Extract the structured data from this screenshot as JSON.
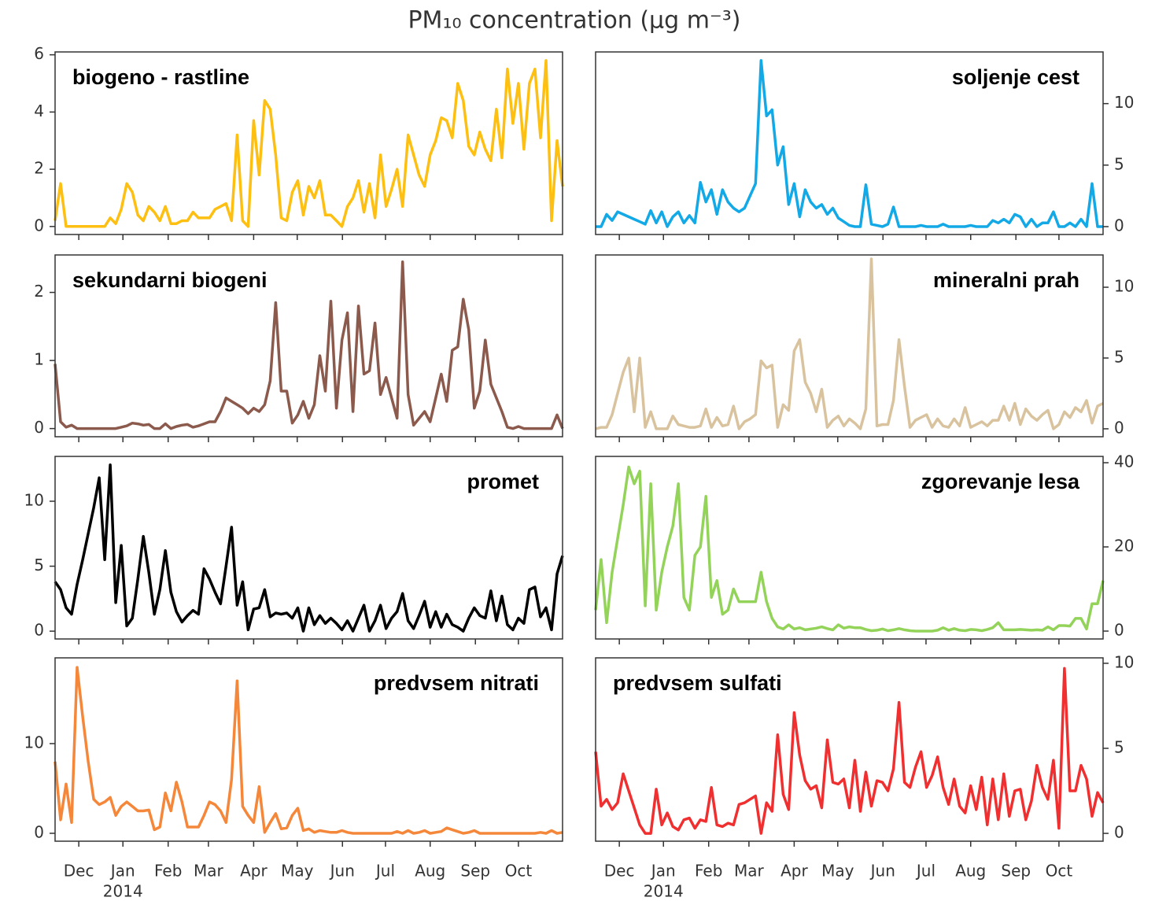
{
  "chart_data": {
    "type": "line",
    "title": "PM₁₀ concentration (μg m⁻³)",
    "xlim": [
      0,
      92
    ],
    "xticks": [
      {
        "value": 4.3,
        "label": "Dec"
      },
      {
        "value": 12.3,
        "label": "Jan"
      },
      {
        "value": 20.5,
        "label": "Feb"
      },
      {
        "value": 27.8,
        "label": "Mar"
      },
      {
        "value": 36.0,
        "label": "Apr"
      },
      {
        "value": 43.9,
        "label": "May"
      },
      {
        "value": 52.1,
        "label": "Jun"
      },
      {
        "value": 59.9,
        "label": "Jul"
      },
      {
        "value": 68.0,
        "label": "Aug"
      },
      {
        "value": 76.2,
        "label": "Sep"
      },
      {
        "value": 84.0,
        "label": "Oct"
      }
    ],
    "year_label": "2014",
    "panels": [
      {
        "name": "biogeno - rastline",
        "color": "#fdbf11",
        "axis": "y",
        "legend": "upper left",
        "ylim": [
          -0.28,
          6.1
        ],
        "yticks": [
          0,
          2,
          4,
          6
        ],
        "values": [
          0.2,
          1.5,
          0,
          0,
          0,
          0,
          0,
          0,
          0,
          0,
          0.3,
          0.1,
          0.6,
          1.5,
          1.2,
          0.4,
          0.2,
          0.7,
          0.5,
          0.2,
          0.7,
          0.1,
          0.1,
          0.2,
          0.2,
          0.5,
          0.3,
          0.3,
          0.3,
          0.6,
          0.7,
          0.8,
          0.2,
          3.2,
          0.2,
          0,
          3.7,
          1.8,
          4.4,
          4.1,
          2.5,
          0.3,
          0.2,
          1.2,
          1.6,
          0.4,
          1.4,
          1.0,
          1.6,
          0.4,
          0.4,
          0.2,
          0,
          0.7,
          1.0,
          1.6,
          0.5,
          1.5,
          0.3,
          2.5,
          0.7,
          1.3,
          2.0,
          0.7,
          3.2,
          2.5,
          1.8,
          1.4,
          2.5,
          3.0,
          3.8,
          3.7,
          3.1,
          5.0,
          4.4,
          2.8,
          2.5,
          3.3,
          2.7,
          2.3,
          4.1,
          2.4,
          5.5,
          3.6,
          5.0,
          2.7,
          5.0,
          5.5,
          3.1,
          5.8,
          0.2,
          3.0,
          1.4
        ]
      },
      {
        "name": "sekundarni biogeni",
        "color": "#8b5a4c",
        "axis": "y",
        "legend": "upper left",
        "ylim": [
          -0.12,
          2.55
        ],
        "yticks": [
          0,
          1,
          2
        ],
        "values": [
          0.95,
          0.1,
          0.02,
          0.05,
          0,
          0,
          0,
          0,
          0,
          0,
          0,
          0,
          0.02,
          0.04,
          0.08,
          0.07,
          0.05,
          0.06,
          0,
          0,
          0.07,
          0,
          0.03,
          0.05,
          0.06,
          0.02,
          0.04,
          0.07,
          0.1,
          0.1,
          0.25,
          0.45,
          0.4,
          0.35,
          0.3,
          0.22,
          0.3,
          0.25,
          0.35,
          0.7,
          1.85,
          0.55,
          0.55,
          0.08,
          0.2,
          0.4,
          0.15,
          0.35,
          1.07,
          0.55,
          1.87,
          0.3,
          1.3,
          1.7,
          0.25,
          1.8,
          0.8,
          0.85,
          1.55,
          0.5,
          0.75,
          0.45,
          0.15,
          2.45,
          0.5,
          0.05,
          0.15,
          0.25,
          0.1,
          0.45,
          0.8,
          0.4,
          1.15,
          1.2,
          1.9,
          1.45,
          0.3,
          0.55,
          1.3,
          0.65,
          0.45,
          0.25,
          0.02,
          0,
          0.03,
          0,
          0,
          0,
          0,
          0,
          0,
          0.2,
          0
        ]
      },
      {
        "name": "promet",
        "color": "#000000",
        "axis": "y",
        "legend": "upper right",
        "ylim": [
          -0.6,
          13.45
        ],
        "yticks": [
          0,
          5,
          10
        ],
        "values": [
          3.8,
          3.2,
          1.8,
          1.3,
          3.6,
          5.5,
          7.5,
          9.5,
          11.8,
          5.5,
          12.8,
          2.2,
          6.6,
          0.4,
          1.0,
          4.0,
          7.3,
          4.5,
          1.3,
          3.2,
          6.2,
          3.0,
          1.5,
          0.7,
          1.2,
          1.6,
          1.3,
          4.8,
          4.0,
          3.0,
          2.1,
          5.0,
          8.0,
          2.0,
          3.8,
          0.1,
          1.7,
          1.8,
          3.2,
          1.1,
          1.4,
          1.3,
          1.4,
          1.0,
          1.8,
          0.0,
          1.8,
          0.5,
          1.2,
          0.6,
          1.0,
          0.6,
          0.1,
          0.8,
          0.0,
          1.0,
          2.0,
          0.0,
          0.8,
          2.0,
          0.2,
          1.0,
          1.5,
          2.9,
          0.8,
          0.2,
          1.2,
          2.3,
          0.3,
          1.5,
          0.3,
          1.3,
          0.5,
          0.3,
          0.0,
          1.0,
          1.8,
          1.2,
          1.0,
          3.1,
          0.8,
          2.7,
          0.5,
          0.1,
          1.0,
          0.6,
          3.2,
          3.4,
          1.1,
          1.8,
          0.1,
          4.4,
          5.8
        ]
      },
      {
        "name": "predvsem nitrati",
        "color": "#f5873a",
        "axis": "y",
        "legend": "upper right",
        "ylim": [
          -0.88,
          19.56
        ],
        "yticks": [
          0,
          10
        ],
        "values": [
          8.0,
          1.5,
          5.5,
          1.2,
          18.5,
          13,
          8,
          3.8,
          3.2,
          3.5,
          4.0,
          2.0,
          3.0,
          3.5,
          3.0,
          2.5,
          2.5,
          2.6,
          0.4,
          0.7,
          4.5,
          2.5,
          5.7,
          3.5,
          0.7,
          0.7,
          0.7,
          2.0,
          3.5,
          3.2,
          2.5,
          1.2,
          6.0,
          17,
          3.0,
          2.0,
          1.2,
          5.2,
          0.1,
          1.2,
          2.2,
          0.5,
          0.6,
          2.0,
          2.8,
          0.3,
          0.5,
          0.1,
          0.3,
          0.2,
          0.1,
          0.1,
          0.3,
          0.1,
          0,
          0,
          0,
          0,
          0,
          0,
          0,
          0,
          0.2,
          0,
          0.3,
          0,
          0.1,
          0.3,
          0,
          0.1,
          0.2,
          0.6,
          0.4,
          0.2,
          0,
          0.1,
          0.3,
          0,
          0,
          0,
          0,
          0,
          0,
          0,
          0,
          0,
          0,
          0,
          0.1,
          0,
          0.3,
          0,
          0.1
        ]
      },
      {
        "name": "soljenje cest",
        "color": "#12a9e6",
        "axis": "y2",
        "legend": "upper right",
        "ylim": [
          -0.64,
          14.2
        ],
        "yticks": [
          0,
          5,
          10
        ],
        "values": [
          0,
          0,
          1.0,
          0.5,
          1.2,
          1.0,
          0.8,
          0.6,
          0.4,
          0.2,
          1.3,
          0.3,
          1.2,
          0,
          0.8,
          1.2,
          0.3,
          0.9,
          0.3,
          3.6,
          2.0,
          3.0,
          1.0,
          3.0,
          2.0,
          1.5,
          1.2,
          1.5,
          2.5,
          3.5,
          13.5,
          9.0,
          9.5,
          5.0,
          6.5,
          1.8,
          3.5,
          0.8,
          3.0,
          2.0,
          1.5,
          1.8,
          1.0,
          1.5,
          0.7,
          0.4,
          0.1,
          0,
          0,
          3.4,
          0.2,
          0.1,
          0,
          0.2,
          1.6,
          0,
          0,
          0,
          0,
          0.1,
          0,
          0,
          0,
          0.2,
          0,
          0,
          0,
          0,
          0.1,
          0,
          0,
          0,
          0.5,
          0.3,
          0.6,
          0.3,
          1.0,
          0.8,
          0,
          0.6,
          0,
          0.3,
          0.3,
          1.2,
          0,
          0,
          0.3,
          0,
          0.6,
          0,
          3.5,
          0,
          0
        ]
      },
      {
        "name": "mineralni prah",
        "color": "#d9c39e",
        "axis": "y2",
        "legend": "upper right",
        "ylim": [
          -0.56,
          12.28
        ],
        "yticks": [
          0,
          5,
          10
        ],
        "values": [
          0,
          0.1,
          0.1,
          1.0,
          2.5,
          4.0,
          5.0,
          1.2,
          5.0,
          0.1,
          1.2,
          0,
          0,
          0,
          0.9,
          0.3,
          0.2,
          0.1,
          0.1,
          0.2,
          1.4,
          0.1,
          0.8,
          0.2,
          0.3,
          1.6,
          0,
          0.5,
          0.7,
          1.0,
          4.8,
          4.3,
          4.5,
          0.1,
          1.7,
          1.3,
          5.5,
          6.3,
          3.3,
          2.5,
          1.2,
          2.8,
          0.1,
          0.6,
          0.9,
          0.2,
          0.7,
          0.4,
          0,
          1.4,
          12.0,
          0.2,
          0.3,
          0.3,
          2.0,
          6.3,
          3.0,
          0.1,
          0.6,
          0.8,
          1.0,
          0.1,
          0.7,
          0.2,
          0.1,
          0.7,
          0.2,
          1.5,
          0.1,
          0.3,
          0.5,
          0.2,
          0.6,
          0.6,
          1.6,
          0.6,
          1.8,
          0.3,
          1.4,
          0.9,
          0.6,
          1.0,
          1.3,
          0,
          0.3,
          1.2,
          0.8,
          1.5,
          1.2,
          2.0,
          0.4,
          1.6,
          1.8
        ]
      },
      {
        "name": "zgorevanje lesa",
        "color": "#93d35a",
        "axis": "y2",
        "legend": "upper right",
        "ylim": [
          -1.87,
          41.5
        ],
        "yticks": [
          0,
          20,
          40
        ],
        "values": [
          5,
          17,
          2,
          14,
          22,
          30,
          39,
          35,
          38,
          6,
          35,
          5,
          14,
          20,
          25,
          35,
          8,
          5,
          18,
          20,
          32,
          8,
          12,
          4,
          5,
          10,
          7,
          7,
          7,
          7,
          14,
          7,
          3,
          1,
          0.5,
          1.5,
          0.5,
          0.8,
          0.3,
          0.5,
          0.7,
          1,
          0.6,
          0.3,
          1.5,
          0.7,
          1,
          0.8,
          0.8,
          0.4,
          0.1,
          0.2,
          0.5,
          0.1,
          0.3,
          0.6,
          0.3,
          0.1,
          0,
          0,
          0,
          0,
          0.2,
          0.8,
          0.2,
          0.6,
          0.2,
          0.1,
          0.4,
          0.3,
          0.1,
          0.4,
          0.8,
          2.0,
          0.3,
          0.3,
          0.3,
          0.4,
          0.3,
          0.2,
          0.3,
          0.2,
          1.0,
          0.3,
          1.3,
          1.3,
          1.2,
          3.0,
          3.0,
          0.5,
          6.5,
          6.5,
          12
        ]
      },
      {
        "name": "predvsem sulfati",
        "color": "#f03030",
        "axis": "y2",
        "legend": "upper left",
        "ylim": [
          -0.46,
          10.32
        ],
        "yticks": [
          0,
          5,
          10
        ],
        "values": [
          4.8,
          1.6,
          2.0,
          1.4,
          1.8,
          3.5,
          2.5,
          1.5,
          0.5,
          0,
          0,
          2.6,
          0.5,
          1.2,
          0.4,
          0.2,
          0.8,
          0.9,
          0.3,
          0.8,
          0.7,
          2.7,
          0.5,
          0.4,
          0.6,
          0.5,
          1.7,
          1.8,
          2.0,
          2.2,
          0,
          1.8,
          1.3,
          5.8,
          2.3,
          1.4,
          7.1,
          4.6,
          3.1,
          2.6,
          2.8,
          1.5,
          5.5,
          3.0,
          2.9,
          3.2,
          1.5,
          4.3,
          1.3,
          3.6,
          1.6,
          3.1,
          3.0,
          2.5,
          3.8,
          7.7,
          3.0,
          2.7,
          3.9,
          4.8,
          2.7,
          3.4,
          4.5,
          2.7,
          1.7,
          3.2,
          1.6,
          1.2,
          2.8,
          1.4,
          3.3,
          0.5,
          3.2,
          0.8,
          3.5,
          1.0,
          2.5,
          2.6,
          0.8,
          1.9,
          4.0,
          2.7,
          2.0,
          4.3,
          0.3,
          9.7,
          2.5,
          2.5,
          4.0,
          3.2,
          1.0,
          2.4,
          1.8
        ]
      }
    ]
  }
}
